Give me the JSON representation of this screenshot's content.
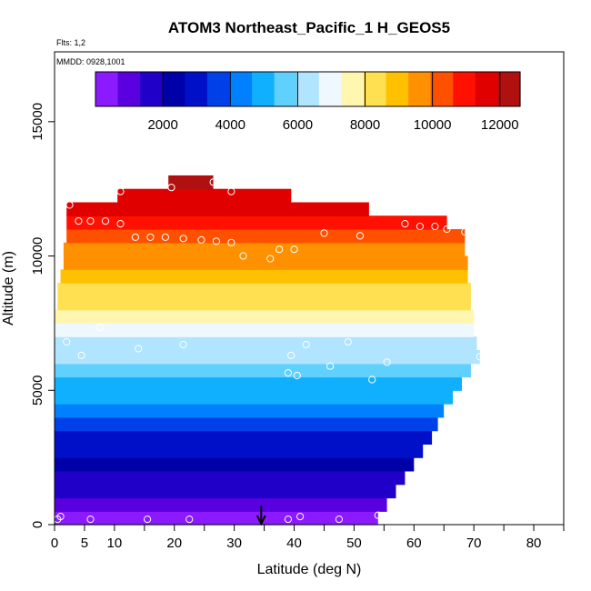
{
  "chart_data": {
    "type": "heatmap",
    "title": "ATOM3 Northeast_Pacific_1 H_GEOS5",
    "flights_label": "Flts: 1,2",
    "dates_label": "MMDD: 0928,1001",
    "xlabel": "Latitude (deg N)",
    "ylabel": "Altitude (m)",
    "xlim": [
      0,
      85
    ],
    "ylim": [
      0,
      17600
    ],
    "x_ticks": [
      0,
      5,
      10,
      20,
      30,
      40,
      50,
      60,
      70,
      80
    ],
    "x_tick_marks": [
      0,
      5,
      10,
      15,
      20,
      25,
      30,
      35,
      40,
      45,
      50,
      55,
      60,
      65,
      70,
      75,
      80,
      85
    ],
    "y_ticks": [
      0,
      5000,
      10000,
      15000
    ],
    "colorbar": {
      "min": 0,
      "max": 12600,
      "ticks": [
        2000,
        4000,
        6000,
        8000,
        10000,
        12000
      ],
      "colors": [
        "#8b1aff",
        "#5a00e0",
        "#2000c8",
        "#0000a8",
        "#0010c8",
        "#0040e8",
        "#0080ff",
        "#10b0ff",
        "#60d0ff",
        "#b0e4ff",
        "#f0f8ff",
        "#fff6b0",
        "#ffe050",
        "#ffc000",
        "#ff9000",
        "#ff5000",
        "#ff1000",
        "#e00000",
        "#b01010"
      ]
    },
    "curtain": [
      {
        "alt": 250,
        "lat_min": 0,
        "lat_max": 54,
        "value": 450
      },
      {
        "alt": 750,
        "lat_min": 0,
        "lat_max": 55.5,
        "value": 900
      },
      {
        "alt": 1250,
        "lat_min": 0,
        "lat_max": 57,
        "value": 1400
      },
      {
        "alt": 1750,
        "lat_min": 0,
        "lat_max": 58.5,
        "value": 1850
      },
      {
        "alt": 2250,
        "lat_min": 0,
        "lat_max": 60,
        "value": 2300
      },
      {
        "alt": 2750,
        "lat_min": 0,
        "lat_max": 61.5,
        "value": 2800
      },
      {
        "alt": 3250,
        "lat_min": 0,
        "lat_max": 63,
        "value": 3300
      },
      {
        "alt": 3750,
        "lat_min": 0,
        "lat_max": 64,
        "value": 3800
      },
      {
        "alt": 4250,
        "lat_min": 0,
        "lat_max": 65,
        "value": 4250
      },
      {
        "alt": 4750,
        "lat_min": 0,
        "lat_max": 66.5,
        "value": 4750
      },
      {
        "alt": 5250,
        "lat_min": 0,
        "lat_max": 68,
        "value": 5200
      },
      {
        "alt": 5750,
        "lat_min": 0,
        "lat_max": 69.5,
        "value": 5650
      },
      {
        "alt": 6250,
        "lat_min": 0,
        "lat_max": 71,
        "value": 6000
      },
      {
        "alt": 6750,
        "lat_min": 0,
        "lat_max": 70.5,
        "value": 6450
      },
      {
        "alt": 7250,
        "lat_min": 0,
        "lat_max": 70,
        "value": 7050
      },
      {
        "alt": 7750,
        "lat_min": 0,
        "lat_max": 70,
        "value": 7500
      },
      {
        "alt": 8250,
        "lat_min": 0.5,
        "lat_max": 69.5,
        "value": 8000
      },
      {
        "alt": 8750,
        "lat_min": 0.5,
        "lat_max": 69.5,
        "value": 8500
      },
      {
        "alt": 9250,
        "lat_min": 1,
        "lat_max": 69,
        "value": 9000
      },
      {
        "alt": 9750,
        "lat_min": 1.5,
        "lat_max": 69,
        "value": 9400
      },
      {
        "alt": 10250,
        "lat_min": 1.5,
        "lat_max": 68.5,
        "value": 9900
      },
      {
        "alt": 10750,
        "lat_min": 2,
        "lat_max": 68.5,
        "value": 10400
      },
      {
        "alt": 11250,
        "lat_min": 2,
        "lat_max": 65.5,
        "value": 10900
      },
      {
        "alt": 11750,
        "lat_min": 2,
        "lat_max": 52.5,
        "value": 11450
      },
      {
        "alt": 12250,
        "lat_min": 10.5,
        "lat_max": 39.5,
        "value": 11900
      },
      {
        "alt": 12750,
        "lat_min": 19,
        "lat_max": 26.5,
        "value": 12300
      }
    ],
    "flight_points": [
      {
        "lat": 1,
        "alt": 300
      },
      {
        "lat": 0.5,
        "alt": 200
      },
      {
        "lat": 6,
        "alt": 200
      },
      {
        "lat": 15.5,
        "alt": 200
      },
      {
        "lat": 22.5,
        "alt": 200
      },
      {
        "lat": 39,
        "alt": 200
      },
      {
        "lat": 41,
        "alt": 300
      },
      {
        "lat": 47.5,
        "alt": 200
      },
      {
        "lat": 54,
        "alt": 350
      },
      {
        "lat": 2,
        "alt": 6800
      },
      {
        "lat": 4.5,
        "alt": 6300
      },
      {
        "lat": 14,
        "alt": 6550
      },
      {
        "lat": 21.5,
        "alt": 6700
      },
      {
        "lat": 39.5,
        "alt": 6300
      },
      {
        "lat": 42,
        "alt": 6700
      },
      {
        "lat": 49,
        "alt": 6800
      },
      {
        "lat": 39,
        "alt": 5650
      },
      {
        "lat": 40.5,
        "alt": 5550
      },
      {
        "lat": 46,
        "alt": 5900
      },
      {
        "lat": 53,
        "alt": 5400
      },
      {
        "lat": 55.5,
        "alt": 6050
      },
      {
        "lat": 71,
        "alt": 6250
      },
      {
        "lat": 2.5,
        "alt": 11900
      },
      {
        "lat": 4,
        "alt": 11300
      },
      {
        "lat": 6,
        "alt": 11300
      },
      {
        "lat": 8.5,
        "alt": 11300
      },
      {
        "lat": 11,
        "alt": 11200
      },
      {
        "lat": 13.5,
        "alt": 10700
      },
      {
        "lat": 16,
        "alt": 10700
      },
      {
        "lat": 18.5,
        "alt": 10700
      },
      {
        "lat": 21.5,
        "alt": 10650
      },
      {
        "lat": 24.5,
        "alt": 10600
      },
      {
        "lat": 27,
        "alt": 10550
      },
      {
        "lat": 29.5,
        "alt": 10500
      },
      {
        "lat": 31.5,
        "alt": 10000
      },
      {
        "lat": 36,
        "alt": 9900
      },
      {
        "lat": 37.5,
        "alt": 10250
      },
      {
        "lat": 40,
        "alt": 10250
      },
      {
        "lat": 45,
        "alt": 10850
      },
      {
        "lat": 51,
        "alt": 10750
      },
      {
        "lat": 58.5,
        "alt": 11200
      },
      {
        "lat": 61,
        "alt": 11100
      },
      {
        "lat": 63.5,
        "alt": 11100
      },
      {
        "lat": 65.5,
        "alt": 11000
      },
      {
        "lat": 68.5,
        "alt": 10900
      },
      {
        "lat": 11,
        "alt": 12400
      },
      {
        "lat": 19.5,
        "alt": 12550
      },
      {
        "lat": 26.5,
        "alt": 12750
      },
      {
        "lat": 29.5,
        "alt": 12400
      },
      {
        "lat": 7.5,
        "alt": 7350
      }
    ],
    "marker": {
      "lat": 34.5,
      "alt": 700
    }
  }
}
